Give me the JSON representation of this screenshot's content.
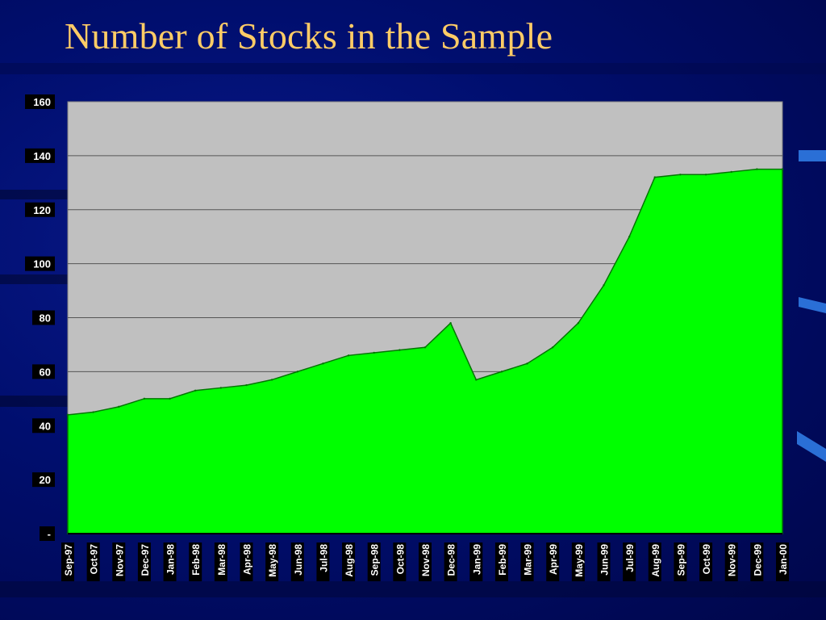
{
  "slide": {
    "title": "Number of Stocks in the Sample"
  },
  "colors": {
    "background": "#000e6e",
    "title": "#ffcc66",
    "plot_area": "#c0c0c0",
    "area_fill": "#00ff00",
    "area_stroke": "#007700",
    "gridline": "#555555",
    "tick_label_bg": "#000000",
    "tick_label_text": "#ffffff",
    "accent_bar": "#2a6fd6"
  },
  "chart_data": {
    "type": "area",
    "title": "",
    "xlabel": "",
    "ylabel": "",
    "ylim": [
      0,
      160
    ],
    "y_ticks": [
      {
        "value": 160,
        "label": "160"
      },
      {
        "value": 140,
        "label": "140"
      },
      {
        "value": 120,
        "label": "120"
      },
      {
        "value": 100,
        "label": "100"
      },
      {
        "value": 80,
        "label": "80"
      },
      {
        "value": 60,
        "label": "60"
      },
      {
        "value": 40,
        "label": "40"
      },
      {
        "value": 20,
        "label": "20"
      },
      {
        "value": 0,
        "label": "-"
      }
    ],
    "x_tick_labels": [
      "Sep-97",
      "Oct-97",
      "Nov-97",
      "Dec-97",
      "Jan-98",
      "Feb-98",
      "Mar-98",
      "Apr-98",
      "May-98",
      "Jun-98",
      "Jul-98",
      "Aug-98",
      "Sep-98",
      "Oct-98",
      "Nov-98",
      "Dec-98",
      "Jan-99",
      "Feb-99",
      "Mar-99",
      "Apr-99",
      "May-99",
      "Jun-99",
      "Jul-99",
      "Aug-99",
      "Sep-99",
      "Oct-99",
      "Nov-99",
      "Dec-99",
      "Jan-00"
    ],
    "grid": true,
    "legend": false,
    "series": [
      {
        "points": [
          [
            "Sep-97",
            44
          ],
          [
            "Oct-97",
            45
          ],
          [
            "Nov-97",
            47
          ],
          [
            "Dec-97",
            50
          ],
          [
            "Jan-98",
            50
          ],
          [
            "Feb-98",
            53
          ],
          [
            "Mar-98",
            54
          ],
          [
            "Apr-98",
            55
          ],
          [
            "May-98",
            57
          ],
          [
            "Jun-98",
            60
          ],
          [
            "Jul-98",
            63
          ],
          [
            "Aug-98",
            66
          ],
          [
            "Sep-98",
            67
          ],
          [
            "Oct-98",
            68
          ],
          [
            "Nov-98",
            69
          ],
          [
            "Dec-98",
            78
          ],
          [
            "Jan-99",
            57
          ],
          [
            "Feb-99",
            60
          ],
          [
            "Mar-99",
            63
          ],
          [
            "Apr-99",
            69
          ],
          [
            "May-99",
            78
          ],
          [
            "Jun-99",
            92
          ],
          [
            "Jul-99",
            110
          ],
          [
            "Aug-99",
            132
          ],
          [
            "Sep-99",
            133
          ],
          [
            "Oct-99",
            133
          ],
          [
            "Nov-99",
            134
          ],
          [
            "Dec-99",
            135
          ],
          [
            "Jan-00",
            135
          ]
        ]
      }
    ]
  }
}
